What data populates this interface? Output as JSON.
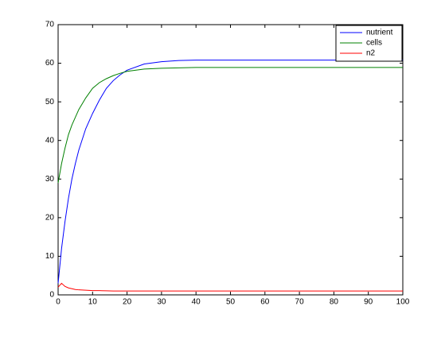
{
  "chart_data": {
    "type": "line",
    "x": [
      0,
      1,
      2,
      3,
      4,
      5,
      6,
      8,
      10,
      12,
      14,
      16,
      18,
      20,
      25,
      30,
      35,
      40,
      50,
      60,
      70,
      80,
      90,
      100
    ],
    "series": [
      {
        "name": "nutrient",
        "color": "#0000ff",
        "values": [
          3,
          12,
          19,
          25,
          30,
          34,
          37.5,
          43,
          47,
          50.5,
          53.5,
          55.5,
          57,
          58.2,
          59.8,
          60.4,
          60.7,
          60.8,
          60.8,
          60.8,
          60.8,
          60.8,
          60.8,
          60.8
        ]
      },
      {
        "name": "cells",
        "color": "#008000",
        "values": [
          29,
          34,
          38,
          41.5,
          44,
          46,
          48,
          51,
          53.5,
          55,
          56,
          56.8,
          57.4,
          57.9,
          58.5,
          58.7,
          58.8,
          58.9,
          58.9,
          58.9,
          58.9,
          58.9,
          58.9,
          58.9
        ]
      },
      {
        "name": "n2",
        "color": "#ff0000",
        "values": [
          2,
          3,
          2.2,
          1.8,
          1.6,
          1.4,
          1.3,
          1.2,
          1.1,
          1.1,
          1.05,
          1,
          1,
          1,
          1,
          1,
          1,
          1,
          1,
          1,
          1,
          1,
          1,
          1
        ]
      }
    ],
    "xlim": [
      0,
      100
    ],
    "xticks": [
      0,
      10,
      20,
      30,
      40,
      50,
      60,
      70,
      80,
      90,
      100
    ],
    "ylim": [
      0,
      70
    ],
    "yticks": [
      0,
      10,
      20,
      30,
      40,
      50,
      60,
      70
    ],
    "legend": "top-right"
  }
}
